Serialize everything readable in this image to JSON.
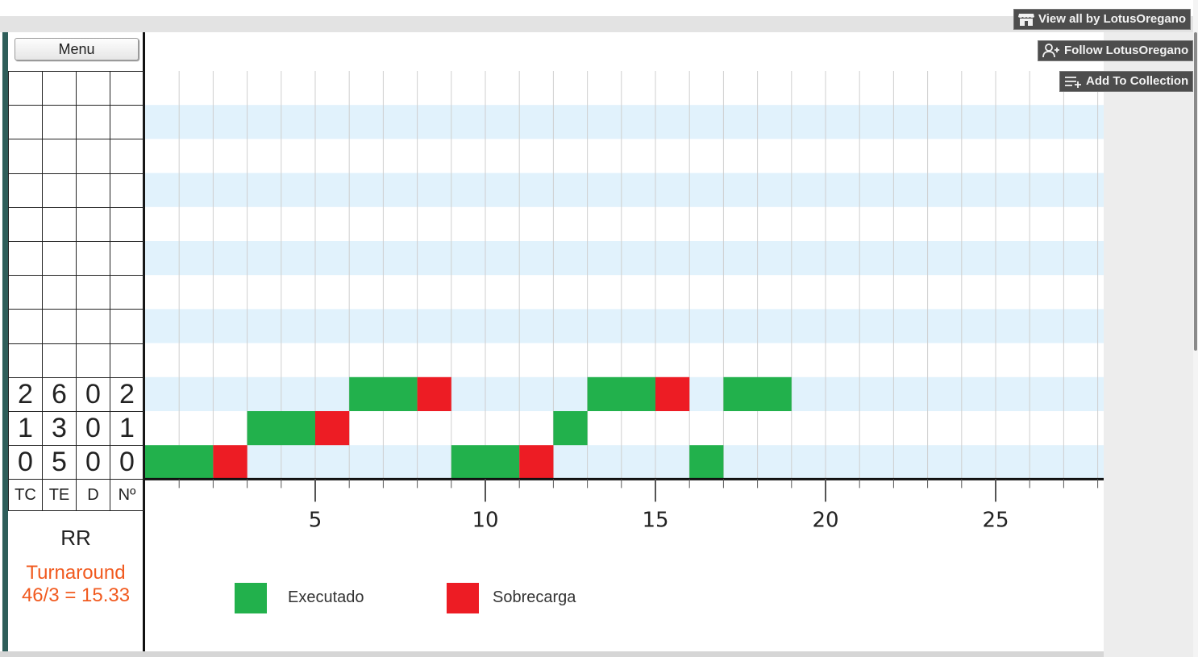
{
  "header": {
    "view_all": "View all by LotusOregano",
    "follow": "Follow LotusOregano",
    "add_collection": "Add To Collection"
  },
  "menu": {
    "label": "Menu"
  },
  "table": {
    "headers": [
      "TC",
      "TE",
      "D",
      "Nº"
    ],
    "rows": [
      [
        "2",
        "6",
        "0",
        "2"
      ],
      [
        "1",
        "3",
        "0",
        "1"
      ],
      [
        "0",
        "5",
        "0",
        "0"
      ]
    ],
    "empty_rows": 9
  },
  "algorithm": "RR",
  "turnaround": {
    "label": "Turnaround",
    "value": "46/3 = 15.33"
  },
  "legend": {
    "executed": {
      "label": "Executado",
      "color": "#22b14c"
    },
    "overload": {
      "label": "Sobrecarga",
      "color": "#ed1c24"
    }
  },
  "chart_data": {
    "type": "gantt",
    "x_ticks": [
      5,
      10,
      15,
      20,
      25
    ],
    "x_range": [
      0,
      28
    ],
    "processes": [
      {
        "id": "2",
        "segments": [
          {
            "start": 6,
            "end": 8,
            "kind": "executed"
          },
          {
            "start": 8,
            "end": 9,
            "kind": "overload"
          },
          {
            "start": 13,
            "end": 15,
            "kind": "executed"
          },
          {
            "start": 15,
            "end": 16,
            "kind": "overload"
          },
          {
            "start": 17,
            "end": 19,
            "kind": "executed"
          }
        ]
      },
      {
        "id": "1",
        "segments": [
          {
            "start": 3,
            "end": 5,
            "kind": "executed"
          },
          {
            "start": 5,
            "end": 6,
            "kind": "overload"
          },
          {
            "start": 12,
            "end": 13,
            "kind": "executed"
          }
        ]
      },
      {
        "id": "0",
        "segments": [
          {
            "start": 0,
            "end": 2,
            "kind": "executed"
          },
          {
            "start": 2,
            "end": 3,
            "kind": "overload"
          },
          {
            "start": 9,
            "end": 11,
            "kind": "executed"
          },
          {
            "start": 11,
            "end": 12,
            "kind": "overload"
          },
          {
            "start": 16,
            "end": 17,
            "kind": "executed"
          }
        ]
      }
    ]
  }
}
